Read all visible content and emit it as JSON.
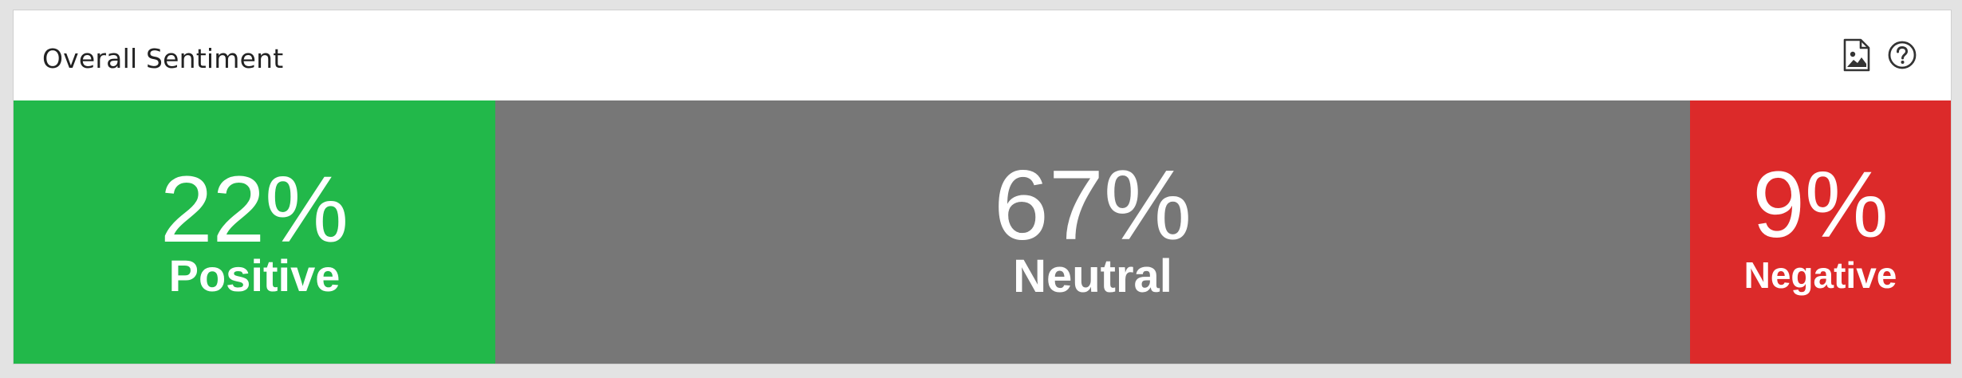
{
  "widget": {
    "title": "Overall Sentiment",
    "icons": [
      "image-export-icon",
      "help-icon"
    ]
  },
  "sentiment": {
    "positive": {
      "percent": "22%",
      "label": "Positive",
      "color": "#22b84a",
      "value": 22
    },
    "neutral": {
      "percent": "67%",
      "label": "Neutral",
      "color": "#777777",
      "value": 67
    },
    "negative": {
      "percent": "9%",
      "label": "Negative",
      "color": "#dc2a2a",
      "value": 9
    }
  }
}
